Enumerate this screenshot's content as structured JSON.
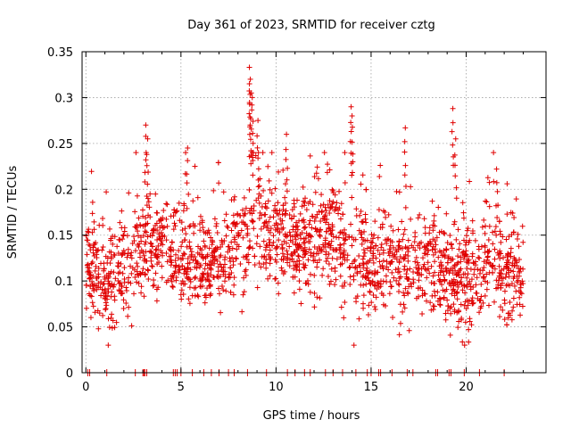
{
  "chart_data": {
    "type": "scatter",
    "title": "Day 361 of 2023, SRMTID for receiver cztg",
    "xlabel": "GPS time / hours",
    "ylabel": "SRMTID / TECUs",
    "xlim": [
      -0.2,
      24.2
    ],
    "ylim": [
      0,
      0.35
    ],
    "xticks": [
      0,
      5,
      10,
      15,
      20
    ],
    "xtick_labels": [
      "0",
      "5",
      "10",
      "15",
      "20"
    ],
    "yticks": [
      0,
      0.05,
      0.1,
      0.15,
      0.2,
      0.25,
      0.3,
      0.35
    ],
    "ytick_labels": [
      "0",
      "0.05",
      "0.1",
      "0.15",
      "0.2",
      "0.25",
      "0.3",
      "0.35"
    ],
    "grid": true,
    "marker": "+",
    "series": [
      {
        "name": "SRMTID",
        "color": "#e00000",
        "x_range": [
          0,
          23
        ],
        "points_approx": 2000,
        "envelope_hours": [
          0,
          1,
          2,
          3,
          4,
          5,
          6,
          7,
          8,
          9,
          10,
          11,
          12,
          13,
          14,
          15,
          16,
          17,
          18,
          19,
          20,
          21,
          22,
          23
        ],
        "envelope_center": [
          0.125,
          0.1,
          0.11,
          0.14,
          0.14,
          0.13,
          0.12,
          0.12,
          0.14,
          0.17,
          0.15,
          0.14,
          0.14,
          0.16,
          0.13,
          0.12,
          0.12,
          0.11,
          0.13,
          0.1,
          0.1,
          0.13,
          0.11,
          0.1
        ],
        "envelope_spread": [
          0.035,
          0.04,
          0.035,
          0.04,
          0.035,
          0.035,
          0.03,
          0.03,
          0.035,
          0.045,
          0.04,
          0.035,
          0.04,
          0.04,
          0.045,
          0.035,
          0.035,
          0.04,
          0.04,
          0.035,
          0.04,
          0.045,
          0.04,
          0.035
        ],
        "peaks": [
          {
            "x": 3.15,
            "y": 0.27
          },
          {
            "x": 3.25,
            "y": 0.255
          },
          {
            "x": 5.35,
            "y": 0.245
          },
          {
            "x": 8.6,
            "y": 0.333
          },
          {
            "x": 8.65,
            "y": 0.32
          },
          {
            "x": 8.7,
            "y": 0.305
          },
          {
            "x": 8.75,
            "y": 0.3
          },
          {
            "x": 9.05,
            "y": 0.275
          },
          {
            "x": 10.55,
            "y": 0.26
          },
          {
            "x": 13.95,
            "y": 0.29
          },
          {
            "x": 14.0,
            "y": 0.28
          },
          {
            "x": 16.8,
            "y": 0.267
          },
          {
            "x": 19.3,
            "y": 0.288
          },
          {
            "x": 19.45,
            "y": 0.255
          },
          {
            "x": 21.6,
            "y": 0.222
          }
        ],
        "zero_hours": [
          0.1,
          0.2,
          1.1,
          2.6,
          3.0,
          3.05,
          3.1,
          3.2,
          4.6,
          4.7,
          4.8,
          5.0,
          5.6,
          6.2,
          6.6,
          7.0,
          7.5,
          7.8,
          8.5,
          9.5,
          10.6,
          11.0,
          11.5,
          11.8,
          12.6,
          13.0,
          13.5,
          14.2,
          14.8,
          15.0,
          15.4,
          15.5,
          16.1,
          16.9,
          17.2,
          18.4,
          18.5,
          19.1,
          19.2,
          19.9,
          20.7,
          22.0
        ]
      }
    ]
  }
}
